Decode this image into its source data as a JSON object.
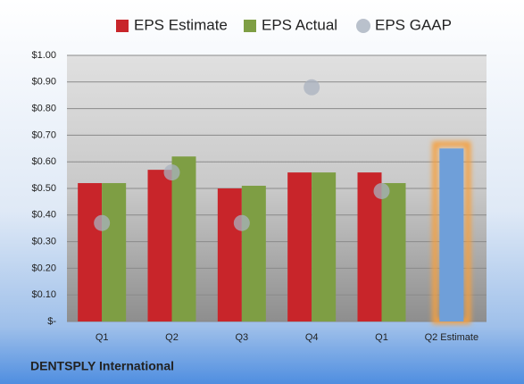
{
  "chart_data": {
    "type": "bar-scatter",
    "categories": [
      "Q1",
      "Q2",
      "Q3",
      "Q4",
      "Q1",
      "Q2 Estimate"
    ],
    "series": [
      {
        "name": "EPS Estimate",
        "color": "#c8252a",
        "colors": [
          "#c8252a",
          "#c8252a",
          "#c8252a",
          "#c8252a",
          "#c8252a",
          "#6f9fd9"
        ],
        "values": [
          0.52,
          0.57,
          0.5,
          0.56,
          0.56,
          0.65
        ]
      },
      {
        "name": "EPS Actual",
        "color": "#7e9e44",
        "values": [
          0.52,
          0.62,
          0.51,
          0.56,
          0.52,
          null
        ]
      },
      {
        "name": "EPS GAAP",
        "color": "#a9b2bf",
        "values": [
          0.37,
          0.56,
          0.37,
          0.88,
          0.49,
          null
        ]
      }
    ],
    "ylim": [
      0,
      1
    ],
    "yticks": [
      {
        "value": 0,
        "label": "$-"
      },
      {
        "value": 0.1,
        "label": "$0.10"
      },
      {
        "value": 0.2,
        "label": "$0.20"
      },
      {
        "value": 0.3,
        "label": "$0.30"
      },
      {
        "value": 0.4,
        "label": "$0.40"
      },
      {
        "value": 0.5,
        "label": "$0.50"
      },
      {
        "value": 0.6,
        "label": "$0.60"
      },
      {
        "value": 0.7,
        "label": "$0.70"
      },
      {
        "value": 0.8,
        "label": "$0.80"
      },
      {
        "value": 0.9,
        "label": "$0.90"
      },
      {
        "value": 1,
        "label": "$1.00"
      }
    ],
    "grid": true,
    "footer": "DENTSPLY International"
  }
}
